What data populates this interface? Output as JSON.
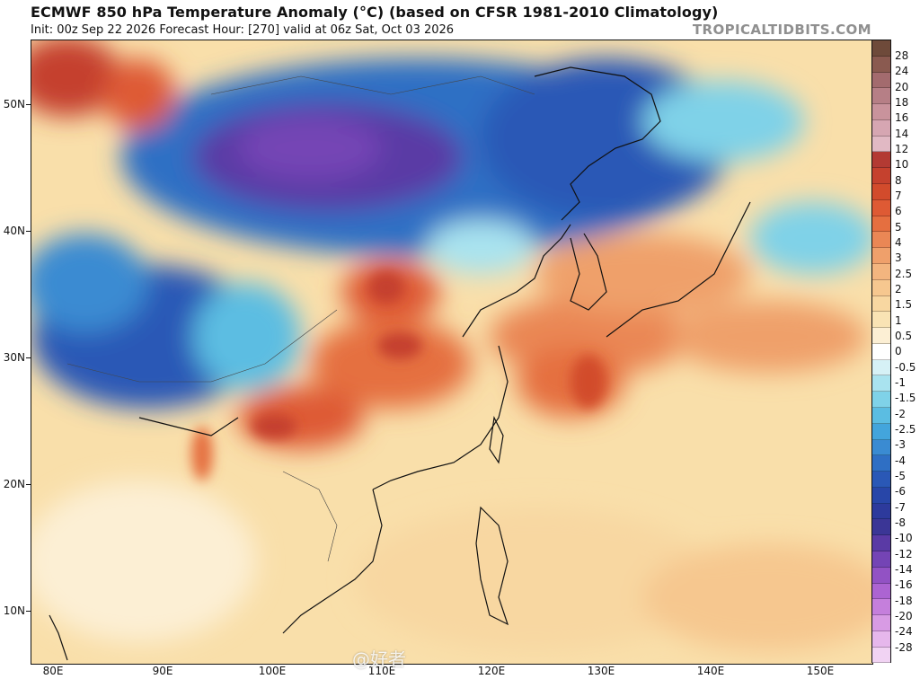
{
  "header": {
    "title": "ECMWF 850 hPa Temperature Anomaly (°C) (based on CFSR 1981-2010 Climatology)",
    "subtitle": "Init: 00z Sep 22 2026   Forecast Hour: [270]   valid at 06z Sat, Oct 03 2026",
    "brand": "TROPICALTIDBITS.COM"
  },
  "map": {
    "lat_labels": [
      "50N",
      "40N",
      "30N",
      "20N",
      "10N"
    ],
    "lon_labels": [
      "80E",
      "90E",
      "100E",
      "110E",
      "120E",
      "130E",
      "140E",
      "150E"
    ]
  },
  "colorbar": {
    "labels": [
      "28",
      "24",
      "20",
      "18",
      "16",
      "14",
      "12",
      "10",
      "8",
      "7",
      "6",
      "5",
      "4",
      "3",
      "2.5",
      "2",
      "1.5",
      "1",
      "0.5",
      "0",
      "-0.5",
      "-1",
      "-1.5",
      "-2",
      "-2.5",
      "-3",
      "-4",
      "-5",
      "-6",
      "-7",
      "-8",
      "-10",
      "-12",
      "-14",
      "-16",
      "-18",
      "-20",
      "-24",
      "-28"
    ],
    "colors": [
      "#6e4a3a",
      "#8a5a50",
      "#a36b6e",
      "#b67f86",
      "#c9939c",
      "#d6a6b2",
      "#e1b9c4",
      "#b33a33",
      "#c5412e",
      "#d24b2c",
      "#de5a34",
      "#e56f40",
      "#ea8755",
      "#efa06b",
      "#f3b57f",
      "#f6c78f",
      "#f8d7a1",
      "#f9e3b4",
      "#fcefd4",
      "#ffffff",
      "#d6f1f6",
      "#a9e3ef",
      "#7fd2e8",
      "#5bbde2",
      "#43a5dc",
      "#3a8bd2",
      "#2f6fc4",
      "#2a58b6",
      "#2846a8",
      "#2d3a9c",
      "#3b3696",
      "#5a3aa5",
      "#7444b5",
      "#9252c4",
      "#ac64d2",
      "#c57fdc",
      "#d89be4",
      "#e6b7ec",
      "#f1d3f3"
    ]
  },
  "watermark": "@好者"
}
